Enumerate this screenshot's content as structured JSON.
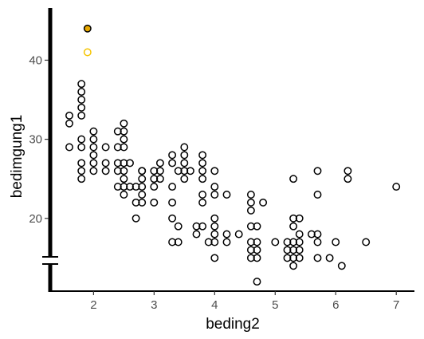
{
  "chart_data": {
    "type": "scatter",
    "title": "",
    "xlabel": "beding2",
    "ylabel": "bedimgung1",
    "x_ticks": [
      2,
      3,
      4,
      5,
      6,
      7
    ],
    "y_ticks": [
      20,
      30,
      40
    ],
    "xlim": [
      1.35,
      7.3
    ],
    "ylim": [
      10.8,
      46.6
    ],
    "grid": false,
    "legend": "none",
    "axis_break_y": 14.1,
    "colors": {
      "point": "#000000",
      "highlight_filled": "#e8a800",
      "highlight_open": "#f5c400"
    },
    "series": [
      {
        "points": [
          [
            1.6,
            33
          ],
          [
            1.6,
            32
          ],
          [
            1.6,
            29
          ],
          [
            1.8,
            37
          ],
          [
            1.8,
            36
          ],
          [
            1.8,
            35
          ],
          [
            1.8,
            34
          ],
          [
            1.8,
            33
          ],
          [
            1.8,
            30
          ],
          [
            1.8,
            29
          ],
          [
            1.8,
            27
          ],
          [
            1.8,
            26
          ],
          [
            1.8,
            25
          ],
          [
            2.0,
            31
          ],
          [
            2.0,
            30
          ],
          [
            2.0,
            29
          ],
          [
            2.0,
            28
          ],
          [
            2.0,
            27
          ],
          [
            2.0,
            26
          ],
          [
            2.2,
            29
          ],
          [
            2.2,
            27
          ],
          [
            2.2,
            26
          ],
          [
            2.4,
            31
          ],
          [
            2.4,
            29
          ],
          [
            2.4,
            27
          ],
          [
            2.4,
            26
          ],
          [
            2.4,
            24
          ],
          [
            2.5,
            32
          ],
          [
            2.5,
            31
          ],
          [
            2.5,
            30
          ],
          [
            2.5,
            29
          ],
          [
            2.5,
            27
          ],
          [
            2.5,
            26
          ],
          [
            2.5,
            25
          ],
          [
            2.5,
            24
          ],
          [
            2.5,
            23
          ],
          [
            2.6,
            27
          ],
          [
            2.6,
            24
          ],
          [
            2.7,
            22
          ],
          [
            2.7,
            20
          ],
          [
            2.7,
            24
          ],
          [
            2.8,
            26
          ],
          [
            2.8,
            25
          ],
          [
            2.8,
            24
          ],
          [
            2.8,
            23
          ],
          [
            2.8,
            22
          ],
          [
            2.8,
            26
          ],
          [
            3.0,
            26
          ],
          [
            3.0,
            25
          ],
          [
            3.0,
            24
          ],
          [
            3.0,
            22
          ],
          [
            3.1,
            27
          ],
          [
            3.1,
            26
          ],
          [
            3.1,
            25
          ],
          [
            3.3,
            28
          ],
          [
            3.3,
            27
          ],
          [
            3.3,
            24
          ],
          [
            3.3,
            22
          ],
          [
            3.3,
            20
          ],
          [
            3.3,
            17
          ],
          [
            3.4,
            26
          ],
          [
            3.4,
            19
          ],
          [
            3.4,
            17
          ],
          [
            3.5,
            29
          ],
          [
            3.5,
            28
          ],
          [
            3.5,
            27
          ],
          [
            3.5,
            26
          ],
          [
            3.5,
            25
          ],
          [
            3.6,
            26
          ],
          [
            3.7,
            19
          ],
          [
            3.7,
            18
          ],
          [
            3.8,
            28
          ],
          [
            3.8,
            27
          ],
          [
            3.8,
            26
          ],
          [
            3.8,
            25
          ],
          [
            3.8,
            23
          ],
          [
            3.8,
            22
          ],
          [
            3.8,
            19
          ],
          [
            3.9,
            17
          ],
          [
            4.0,
            26
          ],
          [
            4.0,
            24
          ],
          [
            4.0,
            23
          ],
          [
            4.0,
            20
          ],
          [
            4.0,
            19
          ],
          [
            4.0,
            18
          ],
          [
            4.0,
            17
          ],
          [
            4.0,
            15
          ],
          [
            4.2,
            23
          ],
          [
            4.2,
            18
          ],
          [
            4.2,
            17
          ],
          [
            4.4,
            18
          ],
          [
            4.6,
            23
          ],
          [
            4.6,
            22
          ],
          [
            4.6,
            21
          ],
          [
            4.6,
            19
          ],
          [
            4.6,
            17
          ],
          [
            4.6,
            16
          ],
          [
            4.6,
            15
          ],
          [
            4.7,
            19
          ],
          [
            4.7,
            17
          ],
          [
            4.7,
            16
          ],
          [
            4.7,
            15
          ],
          [
            4.7,
            12
          ],
          [
            4.8,
            22
          ],
          [
            5.0,
            17
          ],
          [
            5.2,
            17
          ],
          [
            5.2,
            16
          ],
          [
            5.2,
            15
          ],
          [
            5.3,
            25
          ],
          [
            5.3,
            20
          ],
          [
            5.3,
            19
          ],
          [
            5.3,
            17
          ],
          [
            5.3,
            16
          ],
          [
            5.3,
            15
          ],
          [
            5.3,
            14
          ],
          [
            5.4,
            20
          ],
          [
            5.4,
            18
          ],
          [
            5.4,
            17
          ],
          [
            5.4,
            16
          ],
          [
            5.4,
            15
          ],
          [
            5.6,
            18
          ],
          [
            5.7,
            26
          ],
          [
            5.7,
            23
          ],
          [
            5.7,
            18
          ],
          [
            5.7,
            17
          ],
          [
            5.7,
            15
          ],
          [
            5.9,
            15
          ],
          [
            6.0,
            17
          ],
          [
            6.1,
            14
          ],
          [
            6.2,
            26
          ],
          [
            6.2,
            25
          ],
          [
            6.5,
            17
          ],
          [
            7.0,
            24
          ]
        ]
      },
      {
        "points": [
          [
            1.9,
            44
          ]
        ],
        "style": "filled",
        "color": "#e8a800"
      },
      {
        "points": [
          [
            1.9,
            41
          ]
        ],
        "style": "open",
        "color": "#f5c400"
      }
    ]
  }
}
